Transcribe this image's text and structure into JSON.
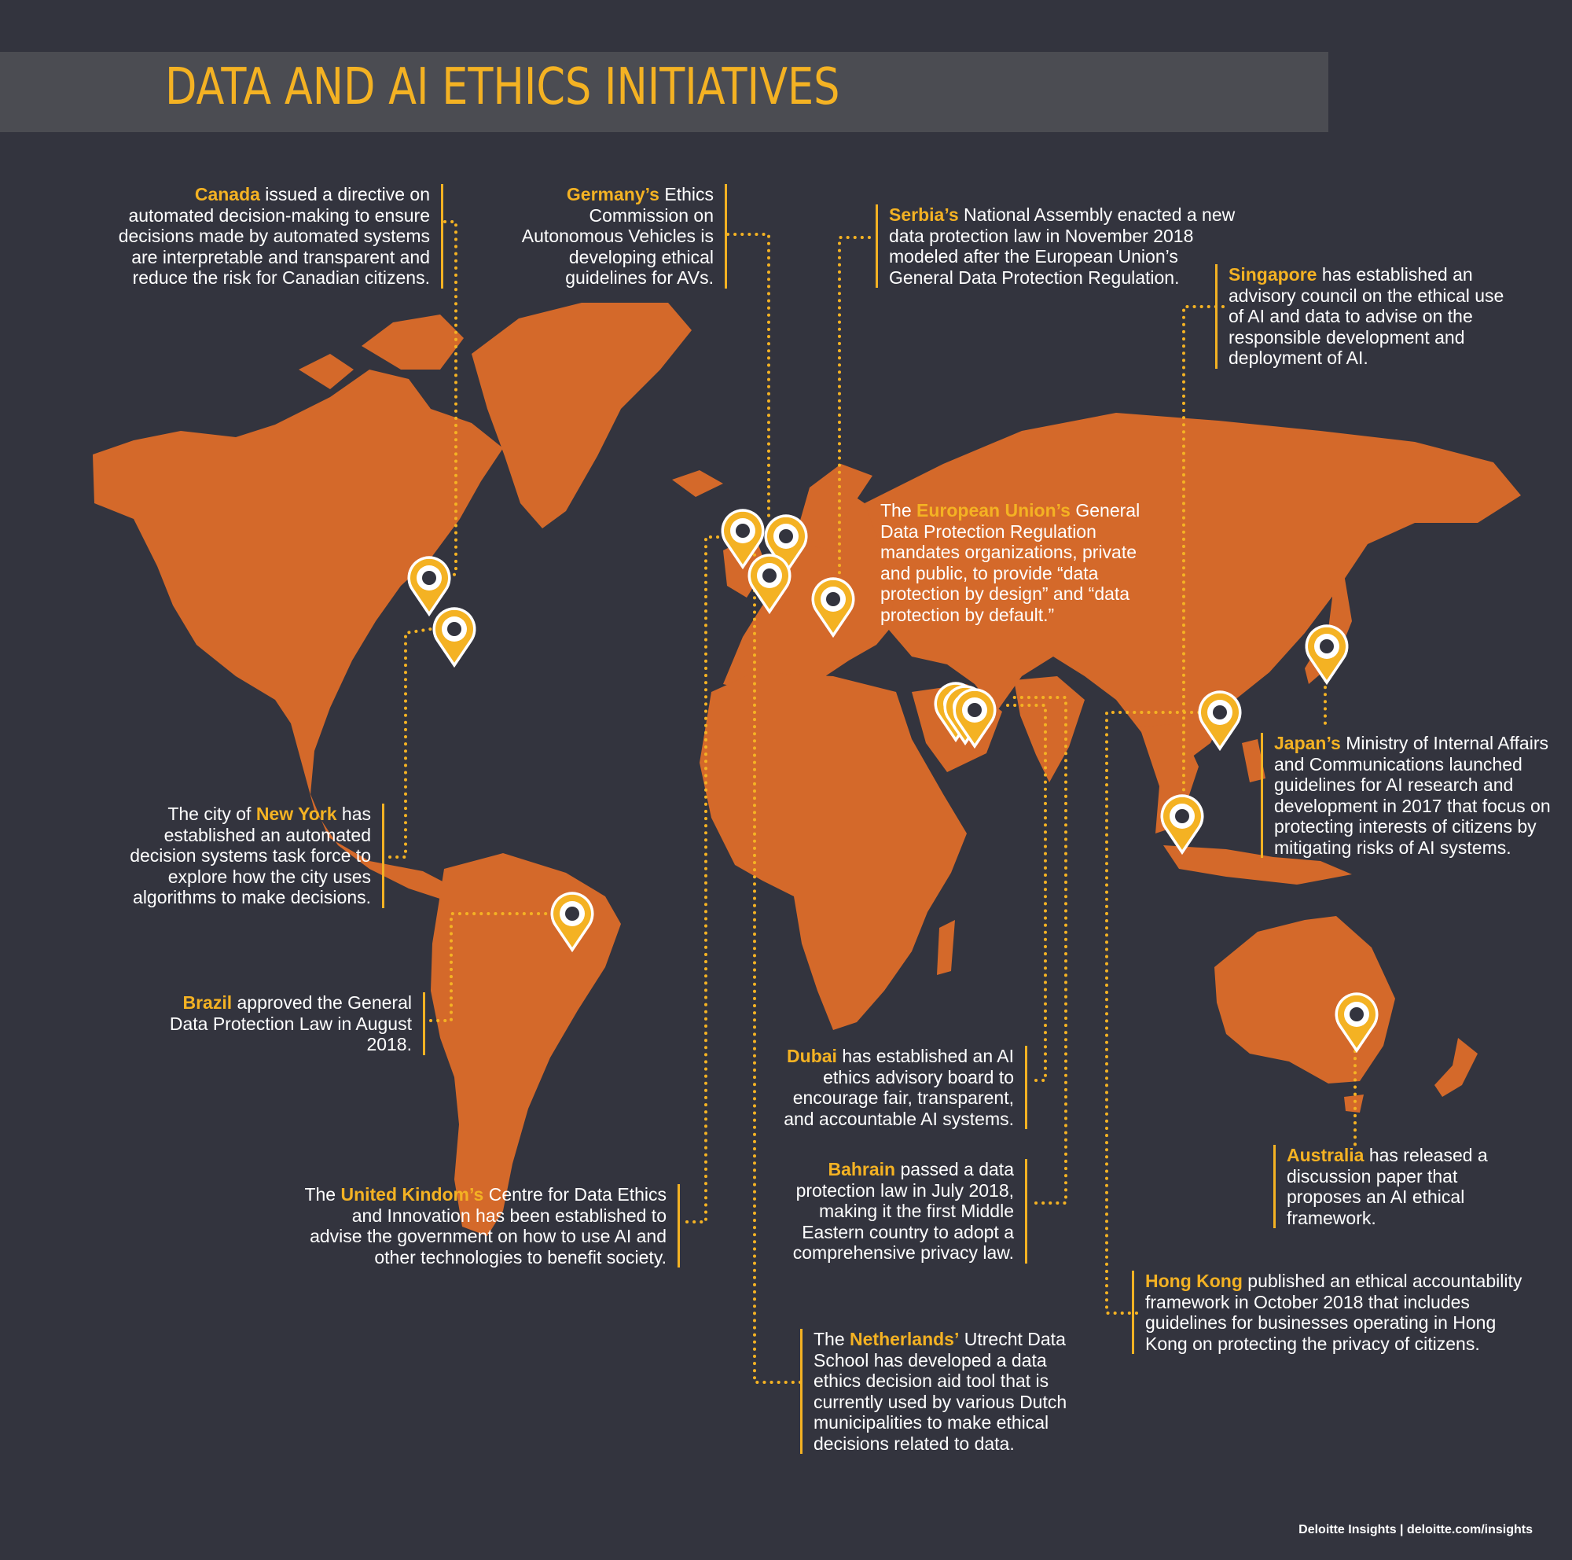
{
  "title": "DATA AND AI ETHICS INITIATIVES",
  "colors": {
    "background": "#33343e",
    "land": "#d4692a",
    "accent": "#f4b223",
    "title_bar": "#4b4c52"
  },
  "pin_icon": "location-pin-icon",
  "callouts": {
    "canada": {
      "country": "Canada",
      "text": " issued a directive on automated decision-making to ensure decisions made by automated systems are interpretable and transparent and reduce the risk for Canadian citizens."
    },
    "germany": {
      "country": "Germany’s",
      "text": " Ethics Commission on Autonomous Vehicles is developing ethical guidelines for AVs."
    },
    "serbia": {
      "country": "Serbia’s",
      "text": " National Assembly enacted a new data protection law in November 2018 modeled after the European Union’s General Data Protection Regulation."
    },
    "singapore": {
      "country": "Singapore",
      "text": " has established an advisory council on the ethical use of AI and data to advise on the responsible development and deployment of AI."
    },
    "eu": {
      "prefix": "The ",
      "country": "European Union’s",
      "text": " General Data Protection Regulation mandates organizations, private and public, to provide “data protection by design” and “data protection by default.”"
    },
    "japan": {
      "country": "Japan’s",
      "text": " Ministry of Internal Affairs and Communications launched guidelines for AI research and development in 2017 that focus on protecting interests of citizens by mitigating risks of AI systems."
    },
    "newyork": {
      "prefix": "The city of ",
      "country": "New York",
      "text": " has established an automated decision systems task force to explore how the city uses algorithms to make decisions."
    },
    "brazil": {
      "country": "Brazil",
      "text": " approved the General Data Protection Law in August 2018."
    },
    "dubai": {
      "country": "Dubai",
      "text": " has established an AI ethics advisory board to encourage fair, transparent, and accountable AI systems."
    },
    "australia": {
      "country": "Australia",
      "text": " has released a discussion paper that proposes an AI ethical framework."
    },
    "bahrain": {
      "country": "Bahrain",
      "text": " passed a data protection law in July 2018, making it the first Middle Eastern country to adopt a comprehensive privacy law."
    },
    "uk": {
      "prefix": "The ",
      "country": "United Kindom’s",
      "text": " Centre for Data Ethics and Innovation has been established to advise the government on how to use AI and other technologies to benefit society."
    },
    "hongkong": {
      "country": "Hong Kong",
      "text": " published an ethical accountability framework in October 2018 that includes guidelines for businesses operating in Hong Kong on protecting the privacy of citizens."
    },
    "netherlands": {
      "prefix": "The ",
      "country": "Netherlands’",
      "text": " Utrecht Data School has developed a data ethics decision aid tool that is currently used by various Dutch municipalities to make ethical decisions related to data."
    }
  },
  "footer": "Deloitte Insights | deloitte.com/insights"
}
